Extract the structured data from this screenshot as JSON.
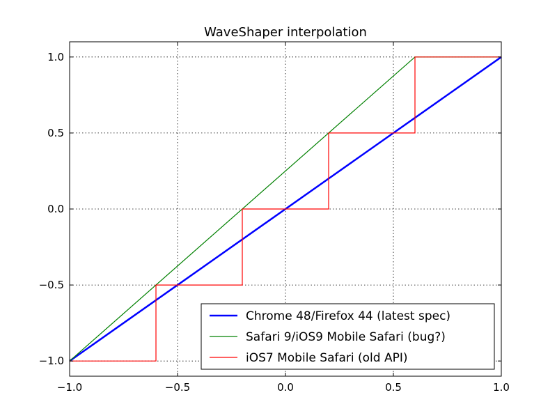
{
  "chart_data": {
    "type": "line",
    "title": "WaveShaper interpolation",
    "xlabel": "",
    "ylabel": "",
    "xlim": [
      -1.0,
      1.0
    ],
    "ylim": [
      -1.1,
      1.1
    ],
    "grid": true,
    "legend_position": "lower-right",
    "x_ticks": [
      -1.0,
      -0.5,
      0.0,
      0.5,
      1.0
    ],
    "x_tick_labels": [
      "−1.0",
      "−0.5",
      "0.0",
      "0.5",
      "1.0"
    ],
    "y_ticks": [
      -1.0,
      -0.5,
      0.0,
      0.5,
      1.0
    ],
    "y_tick_labels": [
      "−1.0",
      "−0.5",
      "0.0",
      "0.5",
      "1.0"
    ],
    "series": [
      {
        "name": "Chrome 48/Firefox 44 (latest spec)",
        "color": "#0000ff",
        "x": [
          -1.0,
          1.0
        ],
        "y": [
          -1.0,
          1.0
        ]
      },
      {
        "name": "Safari 9/iOS9 Mobile Safari (bug?)",
        "color": "#008000",
        "x": [
          -1.0,
          0.6,
          1.0
        ],
        "y": [
          -1.0,
          1.0,
          1.0
        ]
      },
      {
        "name": "iOS7 Mobile Safari (old API)",
        "color": "#ff0000",
        "x": [
          -1.0,
          -0.6,
          -0.6,
          -0.2,
          -0.2,
          0.2,
          0.2,
          0.6,
          0.6,
          1.0
        ],
        "y": [
          -1.0,
          -1.0,
          -0.5,
          -0.5,
          0.0,
          0.0,
          0.5,
          0.5,
          1.0,
          1.0
        ]
      }
    ]
  }
}
